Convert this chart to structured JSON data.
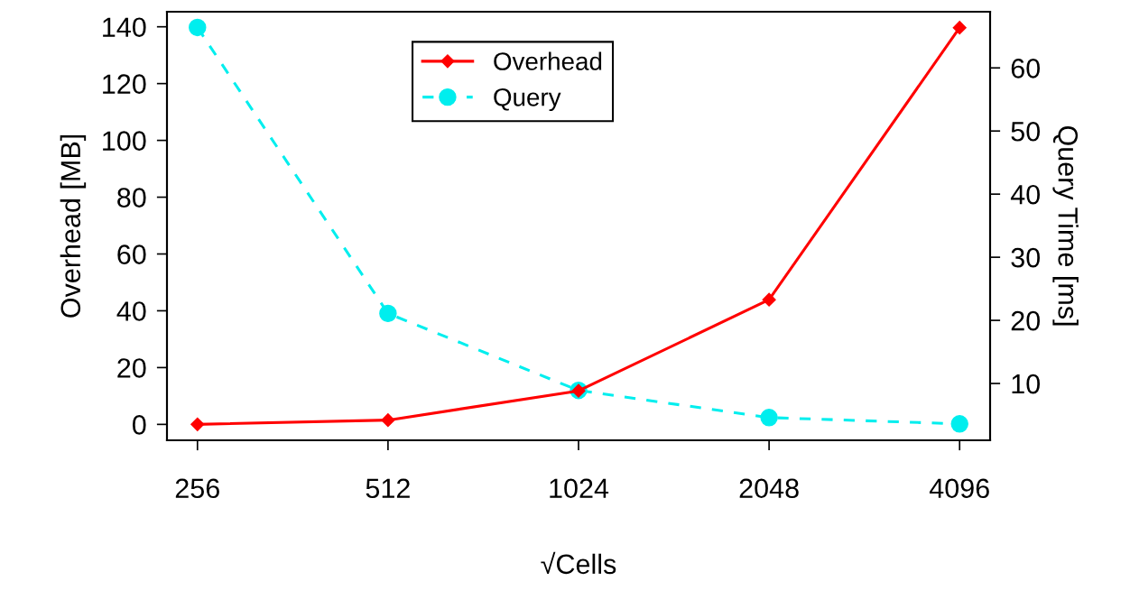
{
  "chart_data": {
    "type": "line",
    "xlabel": "√Cells",
    "ylabel": "Overhead [MB]",
    "y2label": "Query Time [ms]",
    "categories": [
      "256",
      "512",
      "1024",
      "2048",
      "4096"
    ],
    "series": [
      {
        "name": "Overhead",
        "color": "#ff0000",
        "values": [
          0,
          1.5,
          11.8,
          43.9,
          139.7
        ],
        "marker": "diamond",
        "line_style": "solid"
      },
      {
        "name": "Query",
        "color": "#00eeee",
        "values": [
          66.4,
          21.1,
          8.9,
          4.6,
          3.6
        ],
        "marker": "circle",
        "line_style": "dashed",
        "axis": "y2"
      }
    ],
    "ylim": [
      -5.6,
      145.3
    ],
    "yticks": [
      0,
      20,
      40,
      60,
      80,
      100,
      120,
      140
    ],
    "y2lim": [
      1.0,
      68.9
    ],
    "y2ticks": [
      10,
      20,
      30,
      40,
      50,
      60
    ],
    "legend": "top",
    "grid": false
  }
}
